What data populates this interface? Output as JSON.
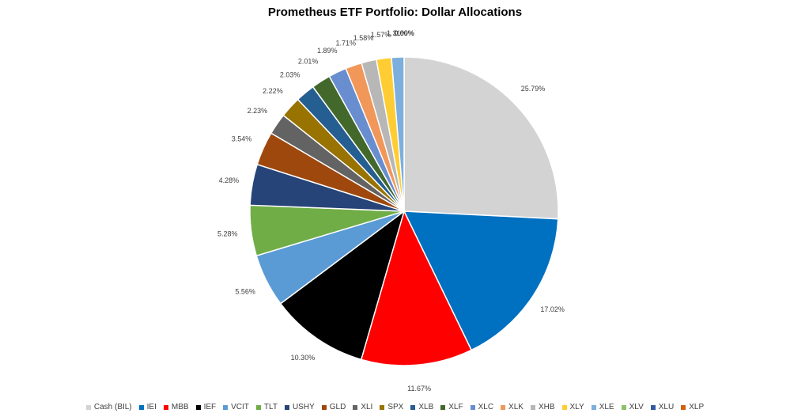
{
  "chart_data": {
    "type": "pie",
    "title": "Prometheus ETF Portfolio: Dollar Allocations",
    "slices": [
      {
        "name": "Cash (BIL)",
        "value": 25.79,
        "label": "25.79%",
        "color": "#D3D3D3"
      },
      {
        "name": "IEI",
        "value": 17.02,
        "label": "17.02%",
        "color": "#0070C0"
      },
      {
        "name": "MBB",
        "value": 11.67,
        "label": "11.67%",
        "color": "#FF0000"
      },
      {
        "name": "IEF",
        "value": 10.3,
        "label": "10.30%",
        "color": "#000000"
      },
      {
        "name": "VCIT",
        "value": 5.56,
        "label": "5.56%",
        "color": "#5B9BD5"
      },
      {
        "name": "TLT",
        "value": 5.28,
        "label": "5.28%",
        "color": "#70AD47"
      },
      {
        "name": "USHY",
        "value": 4.28,
        "label": "4.28%",
        "color": "#264478"
      },
      {
        "name": "GLD",
        "value": 3.54,
        "label": "3.54%",
        "color": "#9E480E"
      },
      {
        "name": "XLI",
        "value": 2.23,
        "label": "2.23%",
        "color": "#636363"
      },
      {
        "name": "SPX",
        "value": 2.22,
        "label": "2.22%",
        "color": "#997300"
      },
      {
        "name": "XLB",
        "value": 2.03,
        "label": "2.03%",
        "color": "#255E91"
      },
      {
        "name": "XLF",
        "value": 2.01,
        "label": "2.01%",
        "color": "#43682B"
      },
      {
        "name": "XLC",
        "value": 1.89,
        "label": "1.89%",
        "color": "#698ED0"
      },
      {
        "name": "XLK",
        "value": 1.71,
        "label": "1.71%",
        "color": "#F1975A"
      },
      {
        "name": "XHB",
        "value": 1.58,
        "label": "1.58%",
        "color": "#B7B7B7"
      },
      {
        "name": "XLY",
        "value": 1.57,
        "label": "1.57%",
        "color": "#FFCD33"
      },
      {
        "name": "XLE",
        "value": 1.31,
        "label": "1.31%",
        "color": "#7CAFDD"
      },
      {
        "name": "XLV",
        "value": 0.0,
        "label": "0.00%",
        "color": "#8CC168"
      },
      {
        "name": "XLU",
        "value": 0.0,
        "label": "0.00%",
        "color": "#335AA1"
      },
      {
        "name": "XLP",
        "value": 0.0,
        "label": "0.00%",
        "color": "#D26012"
      }
    ],
    "legend_position": "bottom"
  }
}
